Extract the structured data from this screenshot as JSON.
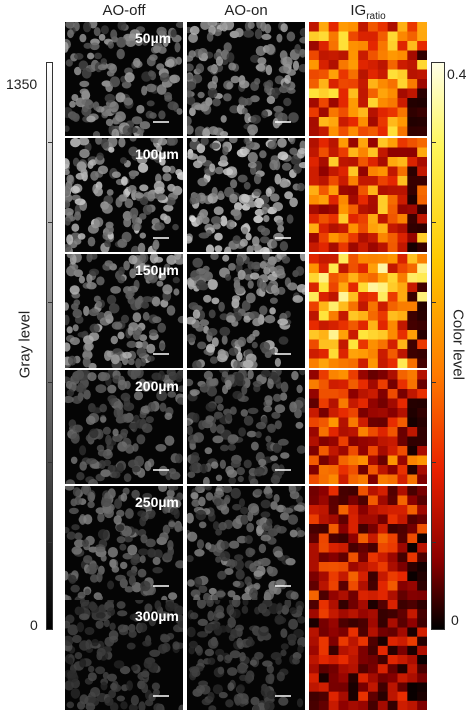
{
  "headers": {
    "ao_off": "AO-off",
    "ao_on": "AO-on",
    "ig": "IG",
    "ig_sub": "ratio"
  },
  "gray_scale": {
    "max": "1350",
    "min": "0",
    "label": "Gray level"
  },
  "color_scale": {
    "max": "0.4",
    "min": "0",
    "label": "Color level"
  },
  "depths": [
    "50µm",
    "100µm",
    "150µm",
    "200µm",
    "250µm",
    "300µm"
  ],
  "intensity": [
    0.78,
    1.0,
    0.85,
    0.55,
    0.6,
    0.32
  ],
  "heat_level": [
    0.62,
    0.58,
    0.7,
    0.48,
    0.4,
    0.32
  ]
}
